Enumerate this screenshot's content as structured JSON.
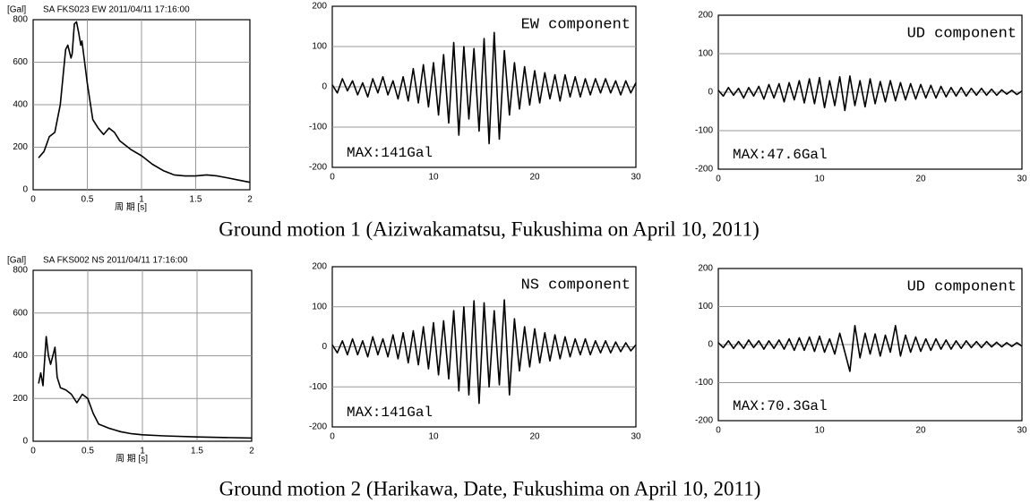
{
  "chart_data": [
    {
      "type": "line",
      "title": "SA FKS023 EW   2011/04/11 17:16:00",
      "ylabel": "[Gal]",
      "xlabel": "周 期 [s]",
      "color": "#000000",
      "grid": "both",
      "x": [
        0.05,
        0.1,
        0.15,
        0.2,
        0.25,
        0.3,
        0.32,
        0.35,
        0.36,
        0.38,
        0.4,
        0.42,
        0.44,
        0.45,
        0.5,
        0.55,
        0.6,
        0.65,
        0.7,
        0.75,
        0.8,
        0.9,
        1.0,
        1.1,
        1.2,
        1.3,
        1.4,
        1.5,
        1.6,
        1.7,
        1.8,
        1.9,
        2.0
      ],
      "values": [
        150,
        180,
        250,
        270,
        400,
        660,
        680,
        620,
        640,
        780,
        790,
        740,
        680,
        700,
        500,
        330,
        290,
        260,
        290,
        270,
        230,
        190,
        160,
        120,
        90,
        70,
        65,
        65,
        70,
        65,
        55,
        45,
        35
      ],
      "xlim": [
        0,
        2
      ],
      "ylim": [
        0,
        800
      ],
      "xticks": [
        0,
        0.5,
        1,
        1.5,
        2
      ],
      "yticks": [
        0,
        200,
        400,
        600,
        800
      ]
    },
    {
      "type": "line",
      "label": "EW component",
      "annotation": "MAX:141Gal",
      "color": "#000000",
      "grid": "y",
      "x": [
        0,
        0.5,
        1,
        1.5,
        2,
        2.5,
        3,
        3.5,
        4,
        4.5,
        5,
        5.5,
        6,
        6.5,
        7,
        7.5,
        8,
        8.5,
        9,
        9.5,
        10,
        10.5,
        11,
        11.5,
        12,
        12.5,
        13,
        13.5,
        14,
        14.5,
        15,
        15.5,
        16,
        16.5,
        17,
        17.5,
        18,
        18.5,
        19,
        19.5,
        20,
        20.5,
        21,
        21.5,
        22,
        22.5,
        23,
        23.5,
        24,
        24.5,
        25,
        25.5,
        26,
        26.5,
        27,
        27.5,
        28,
        28.5,
        29,
        29.5,
        30
      ],
      "values": [
        5,
        -15,
        20,
        -10,
        15,
        -20,
        10,
        -25,
        20,
        -15,
        25,
        -20,
        15,
        -30,
        25,
        -35,
        45,
        -40,
        55,
        -50,
        60,
        -70,
        80,
        -90,
        110,
        -120,
        100,
        -80,
        95,
        -110,
        120,
        -141,
        135,
        -130,
        90,
        -70,
        60,
        -55,
        50,
        -45,
        40,
        -40,
        35,
        -30,
        30,
        -35,
        30,
        -25,
        25,
        -25,
        20,
        -20,
        20,
        -15,
        20,
        -15,
        15,
        -20,
        15,
        -15,
        10
      ],
      "xlim": [
        0,
        30
      ],
      "ylim": [
        -200,
        200
      ],
      "xticks": [
        0,
        10,
        20,
        30
      ],
      "yticks": [
        -200,
        -100,
        0,
        100,
        200
      ]
    },
    {
      "type": "line",
      "label": "UD component",
      "annotation": "MAX:47.6Gal",
      "color": "#000000",
      "grid": "y",
      "x": [
        0,
        0.5,
        1,
        1.5,
        2,
        2.5,
        3,
        3.5,
        4,
        4.5,
        5,
        5.5,
        6,
        6.5,
        7,
        7.5,
        8,
        8.5,
        9,
        9.5,
        10,
        10.5,
        11,
        11.5,
        12,
        12.5,
        13,
        13.5,
        14,
        14.5,
        15,
        15.5,
        16,
        16.5,
        17,
        17.5,
        18,
        18.5,
        19,
        19.5,
        20,
        20.5,
        21,
        21.5,
        22,
        22.5,
        23,
        23.5,
        24,
        24.5,
        25,
        25.5,
        26,
        26.5,
        27,
        27.5,
        28,
        28.5,
        29,
        29.5,
        30
      ],
      "values": [
        5,
        -10,
        12,
        -8,
        10,
        -15,
        12,
        -10,
        15,
        -18,
        20,
        -15,
        22,
        -25,
        25,
        -20,
        30,
        -28,
        35,
        -30,
        38,
        -40,
        30,
        -35,
        40,
        -47.6,
        42,
        -35,
        30,
        -38,
        35,
        -30,
        28,
        -25,
        30,
        -22,
        25,
        -20,
        22,
        -18,
        20,
        -15,
        18,
        -15,
        15,
        -12,
        12,
        -10,
        12,
        -10,
        10,
        -8,
        10,
        -8,
        8,
        -8,
        6,
        -5,
        5,
        -6,
        3
      ],
      "xlim": [
        0,
        30
      ],
      "ylim": [
        -200,
        200
      ],
      "xticks": [
        0,
        10,
        20,
        30
      ],
      "yticks": [
        -200,
        -100,
        0,
        100,
        200
      ]
    },
    {
      "type": "line",
      "title": "SA FKS002 NS   2011/04/11 17:16:00",
      "ylabel": "[Gal]",
      "xlabel": "周 期 [s]",
      "color": "#000000",
      "grid": "both",
      "x": [
        0.05,
        0.07,
        0.09,
        0.1,
        0.12,
        0.14,
        0.16,
        0.18,
        0.2,
        0.22,
        0.25,
        0.3,
        0.35,
        0.4,
        0.45,
        0.5,
        0.55,
        0.6,
        0.7,
        0.8,
        0.9,
        1.0,
        1.2,
        1.5,
        2.0
      ],
      "values": [
        270,
        320,
        260,
        340,
        490,
        400,
        360,
        400,
        440,
        300,
        250,
        240,
        220,
        180,
        220,
        200,
        130,
        80,
        60,
        45,
        35,
        30,
        25,
        20,
        15
      ],
      "xlim": [
        0,
        2
      ],
      "ylim": [
        0,
        800
      ],
      "xticks": [
        0,
        0.5,
        1,
        1.5,
        2
      ],
      "yticks": [
        0,
        200,
        400,
        600,
        800
      ]
    },
    {
      "type": "line",
      "label": "NS component",
      "annotation": "MAX:141Gal",
      "color": "#000000",
      "grid": "y",
      "x": [
        0,
        0.5,
        1,
        1.5,
        2,
        2.5,
        3,
        3.5,
        4,
        4.5,
        5,
        5.5,
        6,
        6.5,
        7,
        7.5,
        8,
        8.5,
        9,
        9.5,
        10,
        10.5,
        11,
        11.5,
        12,
        12.5,
        13,
        13.5,
        14,
        14.5,
        15,
        15.5,
        16,
        16.5,
        17,
        17.5,
        18,
        18.5,
        19,
        19.5,
        20,
        20.5,
        21,
        21.5,
        22,
        22.5,
        23,
        23.5,
        24,
        24.5,
        25,
        25.5,
        26,
        26.5,
        27,
        27.5,
        28,
        28.5,
        29,
        29.5,
        30
      ],
      "values": [
        5,
        -15,
        15,
        -20,
        20,
        -20,
        15,
        -25,
        25,
        -20,
        20,
        -25,
        30,
        -30,
        35,
        -40,
        40,
        -45,
        50,
        -55,
        60,
        -70,
        65,
        -80,
        90,
        -110,
        100,
        -120,
        115,
        -141,
        110,
        -100,
        90,
        -95,
        117,
        -120,
        70,
        -60,
        50,
        -50,
        45,
        -40,
        35,
        -35,
        30,
        -30,
        25,
        -25,
        20,
        -20,
        20,
        -20,
        15,
        -15,
        15,
        -15,
        12,
        -12,
        10,
        -10,
        5
      ],
      "xlim": [
        0,
        30
      ],
      "ylim": [
        -200,
        200
      ],
      "xticks": [
        0,
        10,
        20,
        30
      ],
      "yticks": [
        -200,
        -100,
        0,
        100,
        200
      ]
    },
    {
      "type": "line",
      "label": "UD component",
      "annotation": "MAX:70.3Gal",
      "color": "#000000",
      "grid": "y",
      "x": [
        0,
        0.5,
        1,
        1.5,
        2,
        2.5,
        3,
        3.5,
        4,
        4.5,
        5,
        5.5,
        6,
        6.5,
        7,
        7.5,
        8,
        8.5,
        9,
        9.5,
        10,
        10.5,
        11,
        11.5,
        12,
        12.5,
        13,
        13.5,
        14,
        14.5,
        15,
        15.5,
        16,
        16.5,
        17,
        17.5,
        18,
        18.5,
        19,
        19.5,
        20,
        20.5,
        21,
        21.5,
        22,
        22.5,
        23,
        23.5,
        24,
        24.5,
        25,
        25.5,
        26,
        26.5,
        27,
        27.5,
        28,
        28.5,
        29,
        29.5,
        30
      ],
      "values": [
        5,
        -8,
        10,
        -10,
        8,
        -10,
        12,
        -8,
        10,
        -12,
        10,
        -10,
        12,
        -12,
        15,
        -15,
        18,
        -15,
        20,
        -18,
        22,
        -20,
        15,
        -25,
        30,
        -20,
        -70.3,
        50,
        -35,
        30,
        -25,
        28,
        -30,
        25,
        -20,
        50,
        -30,
        25,
        -20,
        20,
        -18,
        15,
        -15,
        15,
        -12,
        12,
        -12,
        10,
        -10,
        10,
        -8,
        8,
        -8,
        8,
        -6,
        6,
        -6,
        5,
        -5,
        5,
        -4
      ],
      "xlim": [
        0,
        30
      ],
      "ylim": [
        -200,
        200
      ],
      "xticks": [
        0,
        10,
        20,
        30
      ],
      "yticks": [
        -200,
        -100,
        0,
        100,
        200
      ]
    }
  ],
  "captions": [
    "Ground motion 1 (Aiziwakamatsu, Fukushima on April 10, 2011)",
    "Ground motion 2 (Harikawa, Date, Fukushima on April 10, 2011)"
  ]
}
